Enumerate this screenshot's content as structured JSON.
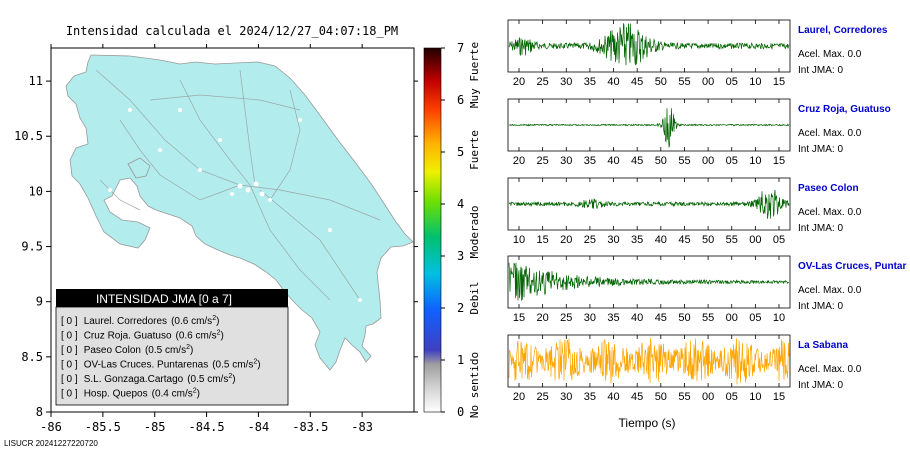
{
  "map": {
    "title": "Intensidad calculada el 2024/12/27_04:07:18_PM",
    "x_ticks": [
      "-86",
      "-85.5",
      "-85",
      "-84.5",
      "-84",
      "-83.5",
      "-83"
    ],
    "y_ticks": [
      "11",
      "10.5",
      "10",
      "9.5",
      "9",
      "8.5",
      "8"
    ],
    "xlim": [
      -86,
      -82.5
    ],
    "ylim": [
      8,
      11.3
    ],
    "land_color": "#b2ecec",
    "footer": "LISUCR 20241227220720"
  },
  "legend": {
    "header": "INTENSIDAD JMA [0 a 7]",
    "rows": [
      {
        "value": "[ 0 ]",
        "station": "Laurel. Corredores",
        "accel": "(0.6 cm/s",
        "sup": "2",
        "close": ")"
      },
      {
        "value": "[ 0 ]",
        "station": "Cruz Roja. Guatuso",
        "accel": "(0.6 cm/s",
        "sup": "2",
        "close": ")"
      },
      {
        "value": "[ 0 ]",
        "station": "Paseo Colon",
        "accel": "(0.5 cm/s",
        "sup": "2",
        "close": ")"
      },
      {
        "value": "[ 0 ]",
        "station": "OV-Las Cruces. Puntarenas",
        "accel": "(0.5 cm/s",
        "sup": "2",
        "close": ")"
      },
      {
        "value": "[ 0 ]",
        "station": "S.L. Gonzaga.Cartago",
        "accel": "(0.5 cm/s",
        "sup": "2",
        "close": ")"
      },
      {
        "value": "[ 0 ]",
        "station": "Hosp. Quepos",
        "accel": "(0.4 cm/s",
        "sup": "2",
        "close": ")"
      }
    ]
  },
  "colorbar": {
    "ticks": [
      "0",
      "1",
      "2",
      "3",
      "4",
      "5",
      "6",
      "7"
    ],
    "labels": [
      "No sentido",
      "Debil",
      "Moderado",
      "Fuerte",
      "Muy Fuerte"
    ]
  },
  "chart_data": {
    "type": "line",
    "xlabel": "Tiempo (s)",
    "series": [
      {
        "name": "Laurel, Corredores",
        "accel_label": "Acel. Max. 0.0",
        "jma_label": "Int JMA: 0",
        "x_ticks": [
          "20",
          "25",
          "30",
          "35",
          "40",
          "45",
          "50",
          "55",
          "00",
          "05",
          "10",
          "15"
        ],
        "color": "#006400"
      },
      {
        "name": "Cruz Roja, Guatuso",
        "accel_label": "Acel. Max. 0.0",
        "jma_label": "Int JMA: 0",
        "x_ticks": [
          "20",
          "25",
          "30",
          "35",
          "40",
          "45",
          "50",
          "55",
          "00",
          "05",
          "10",
          "15"
        ],
        "color": "#006400"
      },
      {
        "name": "Paseo Colon",
        "accel_label": "Acel. Max. 0.0",
        "jma_label": "Int JMA: 0",
        "x_ticks": [
          "10",
          "15",
          "20",
          "25",
          "30",
          "35",
          "40",
          "45",
          "50",
          "55",
          "00",
          "05"
        ],
        "color": "#006400"
      },
      {
        "name": "OV-Las Cruces, Puntar",
        "accel_label": "Acel. Max. 0.0",
        "jma_label": "Int JMA: 0",
        "x_ticks": [
          "15",
          "20",
          "25",
          "30",
          "35",
          "40",
          "45",
          "50",
          "55",
          "00",
          "05",
          "10"
        ],
        "color": "#006400"
      },
      {
        "name": "La Sabana",
        "accel_label": "Acel. Max. 0.0",
        "jma_label": "Int JMA: 0",
        "x_ticks": [
          "20",
          "25",
          "30",
          "35",
          "40",
          "45",
          "50",
          "55",
          "00",
          "05",
          "10",
          "15"
        ],
        "color": "#ffa500"
      }
    ]
  }
}
